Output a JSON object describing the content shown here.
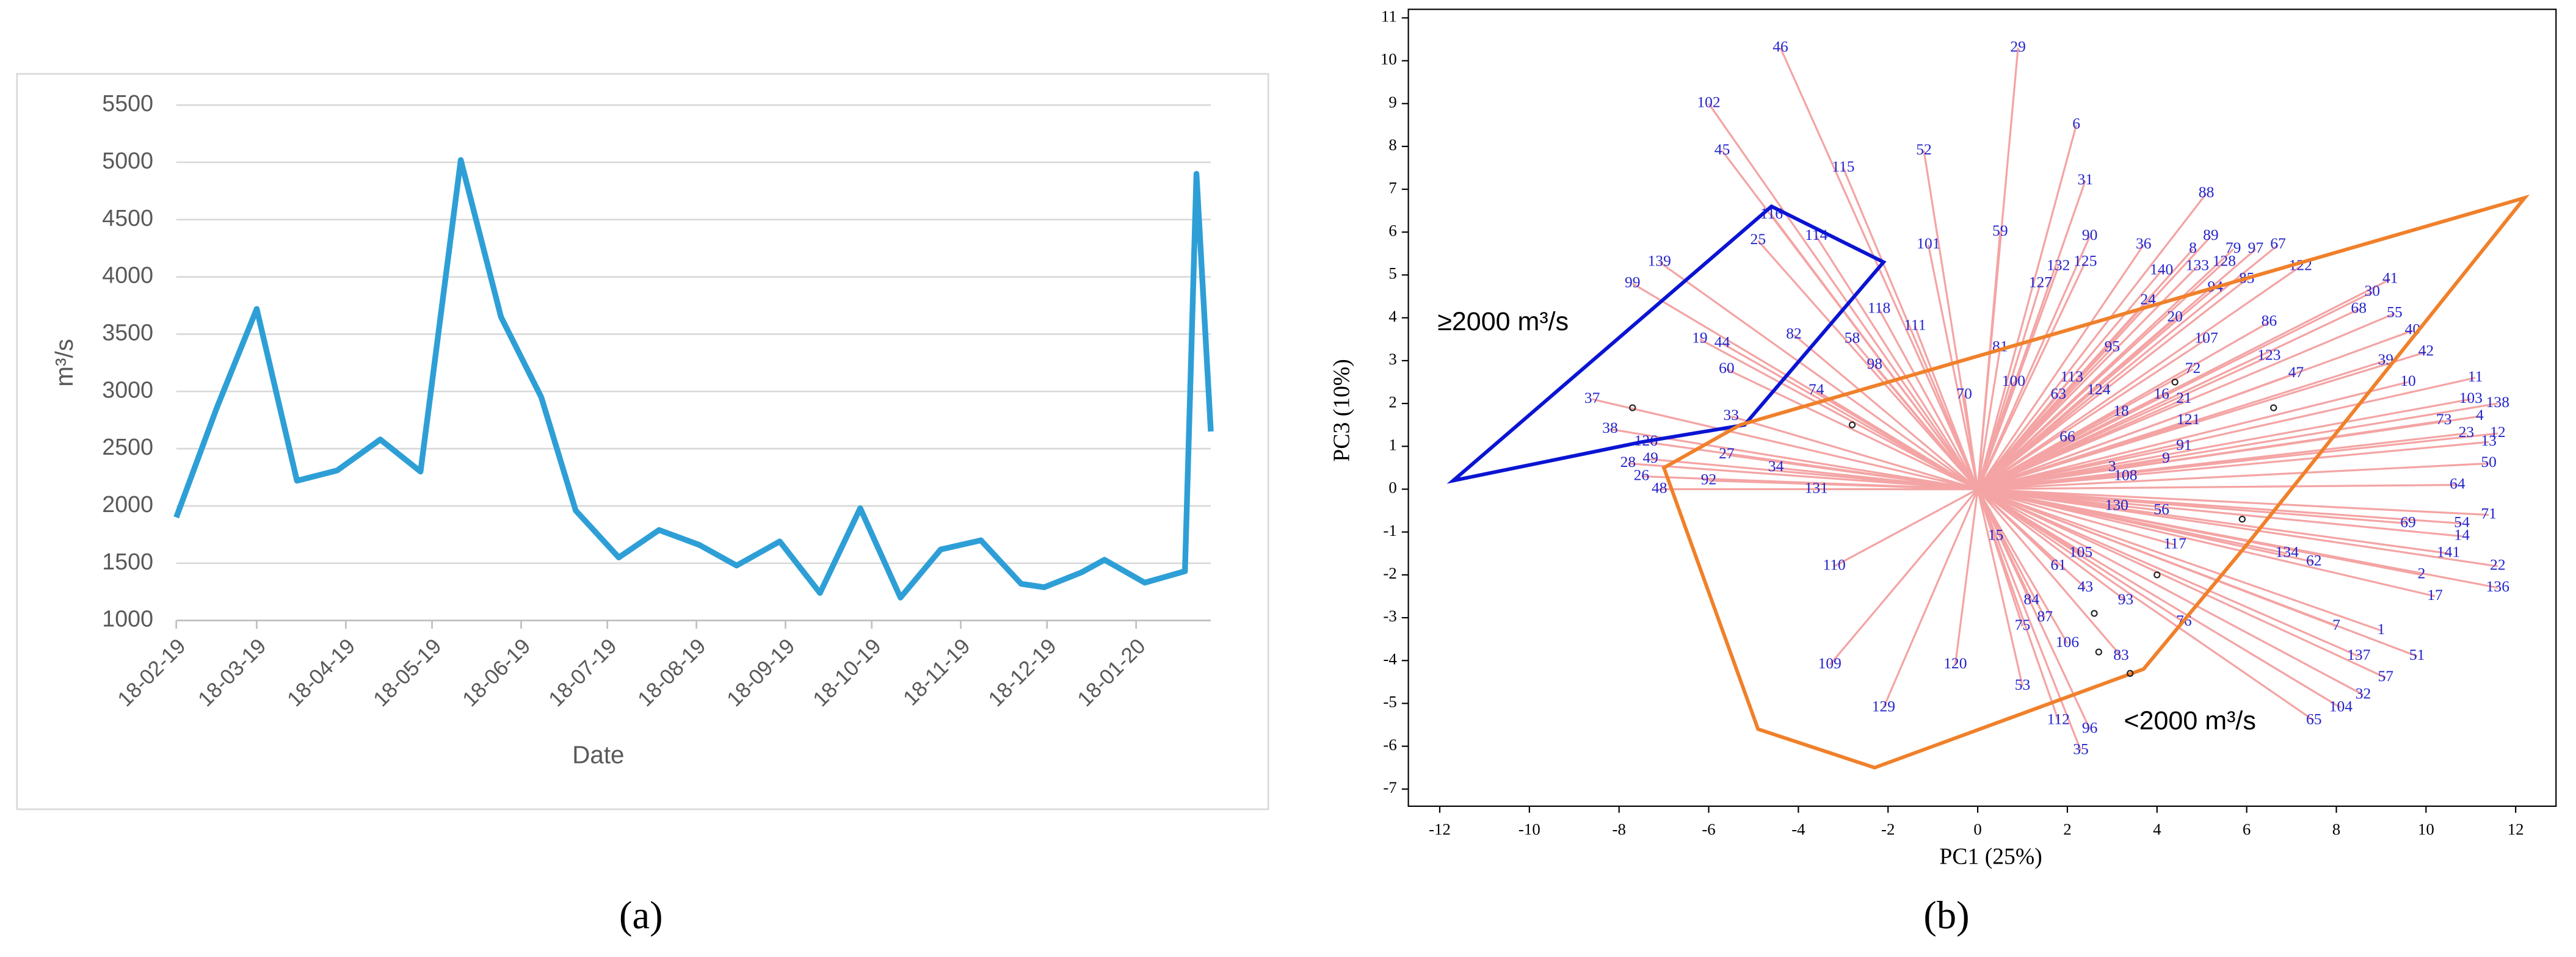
{
  "chart_data": [
    {
      "type": "line",
      "panel_label": "(a)",
      "ylabel": "m³/s",
      "xlabel": "Date",
      "x": [
        "18-02-19",
        "04-03-19",
        "18-03-19",
        "01-04-19",
        "15-04-19",
        "30-04-19",
        "14-05-19",
        "28-05-19",
        "11-06-19",
        "25-06-19",
        "07-07-19",
        "22-07-19",
        "05-08-19",
        "19-08-19",
        "01-09-19",
        "16-09-19",
        "30-09-19",
        "14-10-19",
        "28-10-19",
        "11-11-19",
        "25-11-19",
        "09-12-19",
        "17-12-19",
        "30-12-19",
        "07-01-20",
        "21-01-20",
        "04-02-20",
        "08-02-20",
        "13-02-20"
      ],
      "values": [
        1900,
        2850,
        3720,
        2220,
        2310,
        2580,
        2300,
        5020,
        3650,
        2950,
        1960,
        1550,
        1790,
        1660,
        1480,
        1690,
        1240,
        1980,
        1200,
        1620,
        1700,
        1320,
        1290,
        1420,
        1530,
        1330,
        1430,
        4900,
        2650
      ],
      "color": "#2e9fd6",
      "xlim": [
        "18-02-19",
        "13-02-20"
      ],
      "xticks": [
        "18-02-19",
        "18-03-19",
        "18-04-19",
        "18-05-19",
        "18-06-19",
        "18-07-19",
        "18-08-19",
        "18-09-19",
        "18-10-19",
        "18-11-19",
        "18-12-19",
        "18-01-20"
      ],
      "ylim": [
        1000,
        5500
      ],
      "yticks": [
        1000,
        1500,
        2000,
        2500,
        3000,
        3500,
        4000,
        4500,
        5000,
        5500
      ],
      "grid": true
    },
    {
      "type": "biplot",
      "panel_label": "(b)",
      "xlabel": "PC1 (25%)",
      "ylabel": "PC3 (10%)",
      "xlim": [
        -12.7,
        12.9
      ],
      "xticks": [
        -12,
        -10,
        -8,
        -6,
        -4,
        -2,
        0,
        2,
        4,
        6,
        8,
        10,
        12
      ],
      "ylim": [
        -7.4,
        11.2
      ],
      "yticks": [
        -7,
        -6,
        -5,
        -4,
        -3,
        -2,
        -1,
        0,
        1,
        2,
        3,
        4,
        5,
        6,
        7,
        8,
        9,
        10,
        11
      ],
      "vectors": {
        "color": "#f4a4a4",
        "label_color": "#2323cc",
        "labels": [
          "46",
          "29",
          "6",
          "102",
          "45",
          "115",
          "52",
          "31",
          "88",
          "116",
          "114",
          "25",
          "59",
          "90",
          "36",
          "8",
          "89",
          "79",
          "97",
          "67",
          "101",
          "132",
          "125",
          "133",
          "128",
          "140",
          "85",
          "94",
          "122",
          "139",
          "99",
          "127",
          "24",
          "41",
          "30",
          "68",
          "55",
          "20",
          "86",
          "118",
          "111",
          "107",
          "40",
          "19",
          "44",
          "82",
          "58",
          "95",
          "81",
          "123",
          "42",
          "39",
          "98",
          "60",
          "113",
          "100",
          "72",
          "47",
          "10",
          "11",
          "63",
          "124",
          "16",
          "21",
          "74",
          "70",
          "103",
          "138",
          "18",
          "121",
          "4",
          "73",
          "37",
          "33",
          "23",
          "12",
          "66",
          "91",
          "13",
          "38",
          "126",
          "27",
          "9",
          "50",
          "28",
          "49",
          "3",
          "108",
          "34",
          "26",
          "48",
          "92",
          "131",
          "64",
          "130",
          "56",
          "71",
          "69",
          "54",
          "14",
          "15",
          "117",
          "141",
          "134",
          "62",
          "105",
          "22",
          "110",
          "61",
          "2",
          "43",
          "136",
          "17",
          "93",
          "84",
          "76",
          "7",
          "1",
          "75",
          "87",
          "106",
          "83",
          "137",
          "51",
          "109",
          "120",
          "57",
          "53",
          "32",
          "104",
          "65",
          "112",
          "96",
          "129",
          "35"
        ],
        "x": [
          -4.4,
          0.9,
          2.2,
          -6.0,
          -5.7,
          -3.0,
          -1.2,
          2.4,
          5.1,
          -4.6,
          -3.6,
          -4.9,
          0.5,
          2.5,
          3.7,
          4.8,
          5.2,
          5.7,
          6.2,
          6.7,
          -1.1,
          1.8,
          2.4,
          4.9,
          5.5,
          4.1,
          6.0,
          5.3,
          7.2,
          -7.1,
          -7.7,
          1.4,
          3.8,
          9.2,
          8.8,
          8.5,
          9.3,
          4.4,
          6.5,
          -2.2,
          -1.4,
          5.1,
          9.7,
          -6.2,
          -5.7,
          -4.1,
          -2.8,
          3.0,
          0.5,
          6.5,
          10.0,
          9.1,
          -2.3,
          -5.6,
          2.1,
          0.8,
          4.8,
          7.1,
          9.6,
          11.1,
          1.8,
          2.7,
          4.1,
          4.6,
          -3.6,
          -0.3,
          11.0,
          11.6,
          3.2,
          4.7,
          11.2,
          10.4,
          -8.6,
          -5.5,
          10.9,
          11.6,
          2.0,
          4.6,
          11.4,
          -8.2,
          -7.4,
          -5.6,
          4.2,
          11.4,
          -7.8,
          -7.3,
          3.0,
          3.3,
          -4.5,
          -7.5,
          -7.1,
          -6.0,
          -3.6,
          10.7,
          3.1,
          4.1,
          11.4,
          9.6,
          10.8,
          10.8,
          0.4,
          4.4,
          10.5,
          6.9,
          7.5,
          2.3,
          11.6,
          -3.2,
          1.8,
          9.9,
          2.4,
          11.6,
          10.2,
          3.3,
          1.2,
          4.6,
          8.0,
          9.0,
          1.0,
          1.5,
          2.0,
          3.2,
          8.5,
          9.8,
          -3.3,
          -0.5,
          9.1,
          1.0,
          8.6,
          8.1,
          7.5,
          1.8,
          2.5,
          -2.1,
          2.3
        ],
        "y": [
          10.3,
          10.3,
          8.5,
          9.0,
          7.9,
          7.5,
          7.9,
          7.2,
          6.9,
          6.4,
          5.9,
          5.8,
          6.0,
          5.9,
          5.7,
          5.6,
          5.9,
          5.6,
          5.6,
          5.7,
          5.7,
          5.2,
          5.3,
          5.2,
          5.3,
          5.1,
          4.9,
          4.7,
          5.2,
          5.3,
          4.8,
          4.8,
          4.4,
          4.9,
          4.6,
          4.2,
          4.1,
          4.0,
          3.9,
          4.2,
          3.8,
          3.5,
          3.7,
          3.5,
          3.4,
          3.6,
          3.5,
          3.3,
          3.3,
          3.1,
          3.2,
          3.0,
          2.9,
          2.8,
          2.6,
          2.5,
          2.8,
          2.7,
          2.5,
          2.6,
          2.2,
          2.3,
          2.2,
          2.1,
          2.3,
          2.2,
          2.1,
          2.0,
          1.8,
          1.6,
          1.7,
          1.6,
          2.1,
          1.7,
          1.3,
          1.3,
          1.2,
          1.0,
          1.1,
          1.4,
          1.1,
          0.8,
          0.7,
          0.6,
          0.6,
          0.7,
          0.5,
          0.3,
          0.5,
          0.3,
          0.0,
          0.2,
          0.0,
          0.1,
          -0.4,
          -0.5,
          -0.6,
          -0.8,
          -0.8,
          -1.1,
          -1.1,
          -1.3,
          -1.5,
          -1.5,
          -1.7,
          -1.5,
          -1.8,
          -1.8,
          -1.8,
          -2.0,
          -2.3,
          -2.3,
          -2.5,
          -2.6,
          -2.6,
          -3.1,
          -3.2,
          -3.3,
          -3.2,
          -3.0,
          -3.6,
          -3.9,
          -3.9,
          -3.9,
          -4.1,
          -4.1,
          -4.4,
          -4.6,
          -4.8,
          -5.1,
          -5.4,
          -5.4,
          -5.6,
          -5.1,
          -6.1
        ]
      },
      "polygons": [
        {
          "color": "#0a14d2",
          "x": [
            -11.7,
            -7.5,
            -5.2,
            -2.1,
            -4.6
          ],
          "y": [
            0.2,
            1.1,
            1.5,
            5.3,
            6.6
          ]
        },
        {
          "color": "#f0802a",
          "x": [
            -7.0,
            -5.3,
            12.2,
            6.0,
            3.7,
            -2.3,
            -4.9
          ],
          "y": [
            0.5,
            1.5,
            6.8,
            -1.3,
            -4.2,
            -6.5,
            -5.6
          ]
        }
      ],
      "points": {
        "x": [
          -7.7,
          -2.8,
          4.4,
          6.6,
          5.9,
          4.0,
          2.6,
          2.7,
          3.4
        ],
        "y": [
          1.9,
          1.5,
          2.5,
          1.9,
          -0.7,
          -2.0,
          -2.9,
          -3.8,
          -4.3
        ]
      },
      "annotations": [
        "≥2000 m³/s",
        "<2000 m³/s"
      ]
    }
  ]
}
